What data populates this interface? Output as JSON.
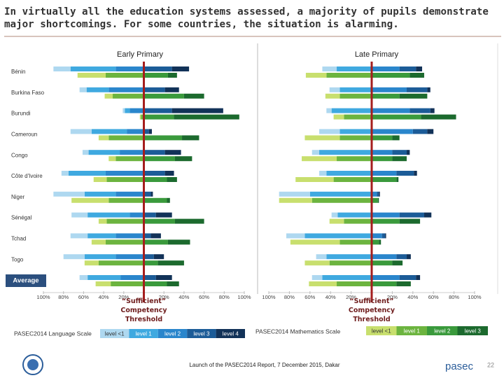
{
  "title": "In virtually all the education systems assessed, a majority of pupils demonstrate major shortcomings. For some countries, the situation is alarming.",
  "chart_data": [
    {
      "type": "bar",
      "orientation": "diverging-horizontal",
      "title": "Early Primary",
      "categories": [
        "Bénin",
        "Burkina Faso",
        "Burundi",
        "Cameroun",
        "Congo",
        "Côte d'Ivoire",
        "Niger",
        "Sénégal",
        "Tchad",
        "Togo",
        "Average"
      ],
      "language": [
        {
          "values": [
            -17,
            -7,
            -2,
            -21,
            -6,
            -7,
            -31,
            -16,
            -17,
            -21,
            -8
          ]
        },
        {
          "values": [
            -45,
            -22,
            -5,
            -35,
            -31,
            -37,
            -31,
            -42,
            -28,
            -31,
            -33
          ]
        },
        {
          "values": [
            -28,
            -35,
            -14,
            -17,
            -24,
            -38,
            -28,
            -14,
            -28,
            -28,
            -23
          ]
        },
        {
          "values": [
            28,
            21,
            28,
            5,
            21,
            21,
            7,
            12,
            7,
            10,
            12
          ]
        },
        {
          "values": [
            17,
            14,
            51,
            3,
            16,
            9,
            2,
            16,
            10,
            10,
            16
          ]
        }
      ],
      "mathematics": [
        {
          "values": [
            -28,
            -8,
            -1,
            -10,
            -7,
            -13,
            -37,
            -8,
            -14,
            -14,
            -15
          ]
        },
        {
          "values": [
            -38,
            -31,
            -3,
            -35,
            -28,
            -37,
            -35,
            -37,
            -38,
            -45,
            -33
          ]
        },
        {
          "values": [
            24,
            40,
            30,
            38,
            31,
            23,
            23,
            31,
            24,
            14,
            23
          ]
        },
        {
          "values": [
            9,
            20,
            65,
            17,
            17,
            10,
            3,
            29,
            22,
            26,
            12
          ]
        }
      ],
      "xlim": [
        -100,
        100
      ],
      "xticks": [
        {
          "value": -100,
          "label": "100%"
        },
        {
          "value": -80,
          "label": "80%"
        },
        {
          "value": -60,
          "label": "60%"
        },
        {
          "value": -40,
          "label": "40%"
        },
        {
          "value": -20,
          "label": "20%"
        },
        {
          "value": 20,
          "label": "20%"
        },
        {
          "value": 40,
          "label": "40%"
        },
        {
          "value": 60,
          "label": "60%"
        },
        {
          "value": 80,
          "label": "80%"
        },
        {
          "value": 100,
          "label": "100%"
        }
      ],
      "threshold_label": "“Sufficient” Competency Threshold"
    },
    {
      "type": "bar",
      "orientation": "diverging-horizontal",
      "title": "Late Primary",
      "categories": [
        null,
        null,
        null,
        null,
        null,
        null,
        null,
        null,
        null,
        null,
        null
      ],
      "language": [
        {
          "values": [
            -14,
            -10,
            -5,
            -20,
            -7,
            -7,
            -30,
            -6,
            -18,
            -10,
            -10
          ]
        },
        {
          "values": [
            -34,
            -31,
            -39,
            -31,
            -51,
            -44,
            -60,
            -33,
            -65,
            -44,
            -48
          ]
        },
        {
          "values": [
            27,
            34,
            37,
            40,
            20,
            24,
            5,
            27,
            10,
            24,
            27
          ]
        },
        {
          "values": [
            16,
            20,
            20,
            14,
            14,
            17,
            2,
            24,
            3,
            10,
            16
          ]
        },
        {
          "values": [
            6,
            3,
            4,
            6,
            3,
            3,
            1,
            7,
            1,
            4,
            4
          ]
        }
      ],
      "mathematics": [
        {
          "values": [
            -20,
            -14,
            -10,
            -34,
            -34,
            -37,
            -32,
            -14,
            -48,
            -24,
            -27
          ]
        },
        {
          "values": [
            -44,
            -31,
            -27,
            -31,
            -34,
            -37,
            -58,
            -27,
            -31,
            -41,
            -34
          ]
        },
        {
          "values": [
            37,
            27,
            48,
            20,
            20,
            24,
            6,
            27,
            7,
            20,
            24
          ]
        },
        {
          "values": [
            14,
            27,
            34,
            7,
            14,
            2,
            1,
            20,
            2,
            10,
            14
          ]
        }
      ],
      "xlim": [
        -100,
        100
      ],
      "xticks": [
        {
          "value": -100,
          "label": "100%"
        },
        {
          "value": -80,
          "label": "80%"
        },
        {
          "value": -60,
          "label": "60%"
        },
        {
          "value": -40,
          "label": "40%"
        },
        {
          "value": -20,
          "label": "20%"
        },
        {
          "value": 20,
          "label": "20%"
        },
        {
          "value": 40,
          "label": "40%"
        },
        {
          "value": 60,
          "label": "60%"
        },
        {
          "value": 80,
          "label": "80%"
        },
        {
          "value": 100,
          "label": "100%"
        }
      ],
      "threshold_label": "“Sufficient” Competency Threshold"
    }
  ],
  "legends": [
    {
      "title": "PASEC2014 Language Scale",
      "items": [
        {
          "name": "level <1",
          "color": "#aed8f0"
        },
        {
          "name": "level 1",
          "color": "#3fa9e0"
        },
        {
          "name": "level 2",
          "color": "#2a86cc"
        },
        {
          "name": "level 3",
          "color": "#1c5c98"
        },
        {
          "name": "level 4",
          "color": "#123258"
        }
      ]
    },
    {
      "title": "PASEC2014 Mathematics Scale",
      "items": [
        {
          "name": "level <1",
          "color": "#c8df6e"
        },
        {
          "name": "level 1",
          "color": "#6cb43f"
        },
        {
          "name": "level 2",
          "color": "#3a9a3c"
        },
        {
          "name": "level 3",
          "color": "#1c6a2e"
        }
      ]
    }
  ],
  "footer": {
    "text": "Launch of the PASEC2014 Report, 7 December 2015, Dakar",
    "brand": "pasec",
    "page": "22"
  }
}
